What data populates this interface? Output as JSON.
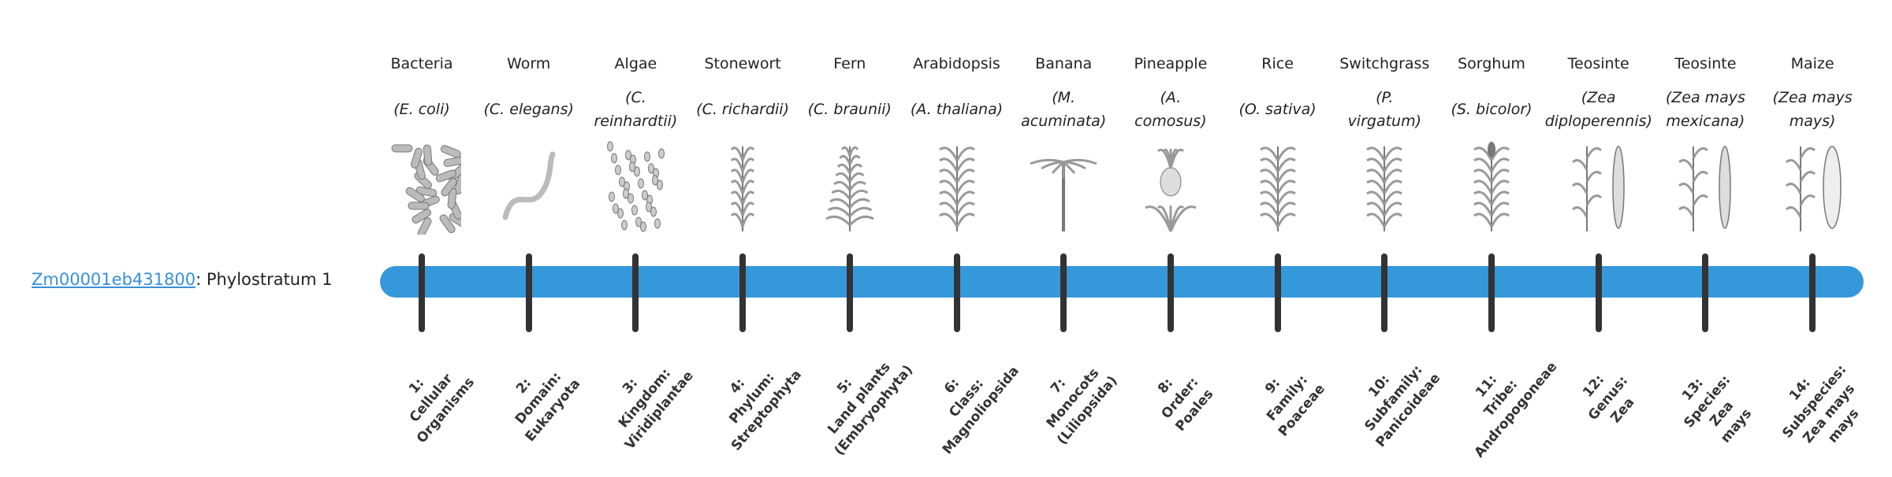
{
  "gene": {
    "id": "Zm00001eb431800",
    "suffix": ": Phylostratum 1"
  },
  "colors": {
    "bar": "#3598db",
    "tick": "#333333",
    "link": "#3a8fd8"
  },
  "strata": [
    {
      "common": "Bacteria",
      "sci": [
        "(E. coli)"
      ],
      "icon": "bacteria",
      "label": [
        "1:",
        "Cellular",
        "Organisms"
      ]
    },
    {
      "common": "Worm",
      "sci": [
        "(C. elegans)"
      ],
      "icon": "worm",
      "label": [
        "2:",
        "Domain:",
        "Eukaryota"
      ]
    },
    {
      "common": "Algae",
      "sci": [
        "(C.",
        "reinhardtii)"
      ],
      "icon": "algae",
      "label": [
        "3:",
        "Kingdom:",
        "Viridiplantae"
      ]
    },
    {
      "common": "Stonewort",
      "sci": [
        "(C. richardii)"
      ],
      "icon": "stonewort",
      "label": [
        "4:",
        "Phylum:",
        "Streptophyta"
      ]
    },
    {
      "common": "Fern",
      "sci": [
        "(C. braunii)"
      ],
      "icon": "fern",
      "label": [
        "5:",
        "Land plants",
        "(Embryophyta)"
      ]
    },
    {
      "common": "Arabidopsis",
      "sci": [
        "(A. thaliana)"
      ],
      "icon": "arabidopsis",
      "label": [
        "6:",
        "Class:",
        "Magnoliopsida"
      ]
    },
    {
      "common": "Banana",
      "sci": [
        "(M.",
        "acuminata)"
      ],
      "icon": "banana",
      "label": [
        "7:",
        "Monocots",
        "(Liliopsida)"
      ]
    },
    {
      "common": "Pineapple",
      "sci": [
        "(A.",
        "comosus)"
      ],
      "icon": "pineapple",
      "label": [
        "8:",
        "Order:",
        "Poales"
      ]
    },
    {
      "common": "Rice",
      "sci": [
        "(O. sativa)"
      ],
      "icon": "rice",
      "label": [
        "9:",
        "Family:",
        "Poaceae"
      ]
    },
    {
      "common": "Switchgrass",
      "sci": [
        "(P.",
        "virgatum)"
      ],
      "icon": "switchgrass",
      "label": [
        "10:",
        "Subfamily:",
        "Panicoideae"
      ]
    },
    {
      "common": "Sorghum",
      "sci": [
        "(S. bicolor)"
      ],
      "icon": "sorghum",
      "label": [
        "11:",
        "Tribe:",
        "Andropogoneae"
      ]
    },
    {
      "common": "Teosinte",
      "sci": [
        "(Zea",
        "diploperennis)"
      ],
      "icon": "teosinte",
      "label": [
        "12:",
        "Genus:",
        "Zea"
      ]
    },
    {
      "common": "Teosinte",
      "sci": [
        "(Zea mays",
        "mexicana)"
      ],
      "icon": "teosinte",
      "label": [
        "13:",
        "Species:",
        "Zea",
        "mays"
      ]
    },
    {
      "common": "Maize",
      "sci": [
        "(Zea mays",
        "mays)"
      ],
      "icon": "maize",
      "label": [
        "14:",
        "Subspecies:",
        "Zea mays",
        "mays"
      ]
    }
  ]
}
